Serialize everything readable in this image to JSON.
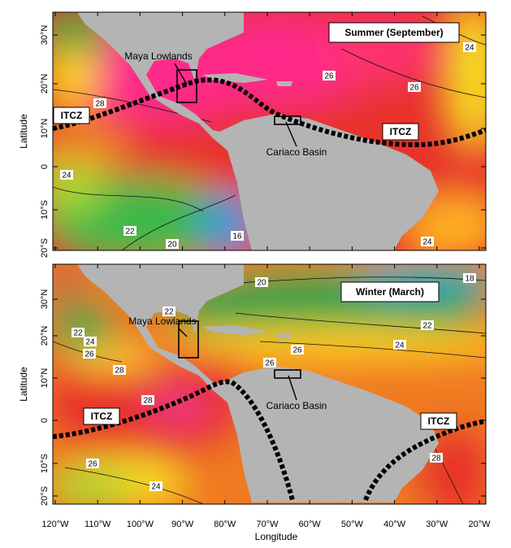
{
  "panels": [
    {
      "title": "Summer (September)",
      "y_axis_label": "Latitude",
      "site_labels": [
        "Maya Lowlands",
        "Cariaco Basin"
      ],
      "itcz_labels": [
        "ITCZ",
        "ITCZ"
      ],
      "contour_labels": [
        "24",
        "26",
        "26",
        "28",
        "24",
        "22",
        "20",
        "16",
        "24"
      ],
      "lat_ticks": [
        "30°N",
        "20°N",
        "10°N",
        "0",
        "10°S",
        "20°S"
      ]
    },
    {
      "title": "Winter (March)",
      "y_axis_label": "Latitude",
      "site_labels": [
        "Maya Lowlands",
        "Cariaco Basin"
      ],
      "itcz_labels": [
        "ITCZ",
        "ITCZ"
      ],
      "contour_labels": [
        "18",
        "20",
        "22",
        "22",
        "24",
        "26",
        "22",
        "24",
        "26",
        "26",
        "28",
        "28",
        "26",
        "24",
        "28"
      ],
      "lat_ticks": [
        "30°N",
        "20°N",
        "10°N",
        "0",
        "10°S",
        "20°S"
      ]
    }
  ],
  "x_axis": {
    "label": "Longitude",
    "ticks": [
      "120°W",
      "110°W",
      "100°W",
      "90°W",
      "80°W",
      "70°W",
      "60°W",
      "50°W",
      "40°W",
      "30°W",
      "20°W"
    ]
  }
}
